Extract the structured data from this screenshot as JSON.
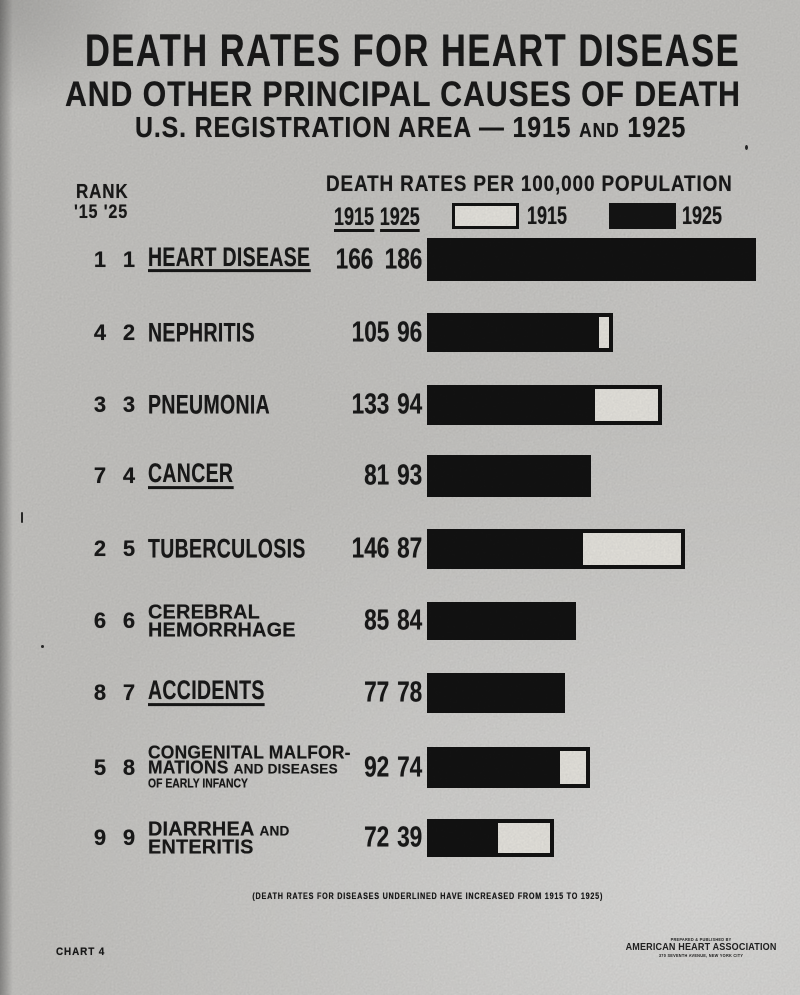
{
  "title": {
    "line1": "DEATH RATES FOR HEART DISEASE",
    "line2": "AND OTHER PRINCIPAL CAUSES OF DEATH",
    "line3_text": "U.S. REGISTRATION AREA  —  1915",
    "line3_and": "AND",
    "line3_year": "1925"
  },
  "header": {
    "rank_label": "RANK",
    "rank_years": "'15 '25",
    "rates_label": "DEATH RATES PER 100,000 POPULATION",
    "col_1915": "1915",
    "col_1925": "1925",
    "legend_1915_label": "1915",
    "legend_1925_label": "1925"
  },
  "footnote": "(DEATH RATES FOR DISEASES UNDERLINED HAVE INCREASED FROM 1915 TO 1925)",
  "footer": {
    "chart_number": "CHART 4",
    "org_top": "PREPARED & PUBLISHED BY",
    "org_name": "AMERICAN HEART ASSOCIATION",
    "org_address": "370 SEVENTH AVENUE, NEW YORK CITY"
  },
  "colors": {
    "ink": "#161616",
    "paper": "#c9c8c5",
    "bar_1925_fill": "#131313",
    "bar_1915_fill": "#eae8e2"
  },
  "chart_data": {
    "type": "bar",
    "orientation": "horizontal",
    "title": "DEATH RATES FOR HEART DISEASE AND OTHER PRINCIPAL CAUSES OF DEATH",
    "subtitle": "U.S. REGISTRATION AREA — 1915 AND 1925",
    "value_axis_label": "DEATH RATES PER 100,000 POPULATION",
    "series_names": [
      "1915",
      "1925"
    ],
    "legend": [
      {
        "label": "1915",
        "swatch": "white-outline"
      },
      {
        "label": "1925",
        "swatch": "black-fill"
      }
    ],
    "note": "Death rates for diseases underlined have increased from 1915 to 1925",
    "rows": [
      {
        "rank_1915": "1",
        "rank_1925": "1",
        "label": "HEART DISEASE",
        "underlined": true,
        "v1915": 166,
        "v1925": 186,
        "lines": [
          {
            "parts": [
              {
                "t": "HEART DISEASE",
                "s": "lg"
              }
            ]
          }
        ]
      },
      {
        "rank_1915": "4",
        "rank_1925": "2",
        "label": "NEPHRITIS",
        "underlined": false,
        "v1915": 105,
        "v1925": 96,
        "lines": [
          {
            "parts": [
              {
                "t": "NEPHRITIS",
                "s": "lg"
              }
            ]
          }
        ]
      },
      {
        "rank_1915": "3",
        "rank_1925": "3",
        "label": "PNEUMONIA",
        "underlined": false,
        "v1915": 133,
        "v1925": 94,
        "lines": [
          {
            "parts": [
              {
                "t": "PNEUMONIA",
                "s": "lg"
              }
            ]
          }
        ]
      },
      {
        "rank_1915": "7",
        "rank_1925": "4",
        "label": "CANCER",
        "underlined": true,
        "v1915": 81,
        "v1925": 93,
        "lines": [
          {
            "parts": [
              {
                "t": "CANCER",
                "s": "lg"
              }
            ]
          }
        ]
      },
      {
        "rank_1915": "2",
        "rank_1925": "5",
        "label": "TUBERCULOSIS",
        "underlined": false,
        "v1915": 146,
        "v1925": 87,
        "lines": [
          {
            "parts": [
              {
                "t": "TUBERCULOSIS",
                "s": "lg"
              }
            ]
          }
        ]
      },
      {
        "rank_1915": "6",
        "rank_1925": "6",
        "label": "CEREBRAL HEMORRHAGE",
        "underlined": false,
        "v1915": 85,
        "v1925": 84,
        "lines": [
          {
            "parts": [
              {
                "t": "CEREBRAL",
                "s": "md"
              }
            ]
          },
          {
            "parts": [
              {
                "t": "HEMORRHAGE",
                "s": "md"
              }
            ]
          }
        ]
      },
      {
        "rank_1915": "8",
        "rank_1925": "7",
        "label": "ACCIDENTS",
        "underlined": true,
        "v1915": 77,
        "v1925": 78,
        "lines": [
          {
            "parts": [
              {
                "t": "ACCIDENTS",
                "s": "lg"
              }
            ]
          }
        ]
      },
      {
        "rank_1915": "5",
        "rank_1925": "8",
        "label": "CONGENITAL MALFORMATIONS AND DISEASES OF EARLY INFANCY",
        "underlined": false,
        "v1915": 92,
        "v1925": 74,
        "lines": [
          {
            "parts": [
              {
                "t": "CONGENITAL MALFOR-",
                "s": "m2"
              }
            ]
          },
          {
            "parts": [
              {
                "t": "MATIONS ",
                "s": "m2"
              },
              {
                "t": "AND DISEASES",
                "s": "sm"
              }
            ]
          },
          {
            "parts": [
              {
                "t": "OF EARLY INFANCY",
                "s": "xs"
              }
            ]
          }
        ]
      },
      {
        "rank_1915": "9",
        "rank_1925": "9",
        "label": "DIARRHEA AND ENTERITIS",
        "underlined": false,
        "v1915": 72,
        "v1925": 39,
        "lines": [
          {
            "parts": [
              {
                "t": "DIARRHEA ",
                "s": "md"
              },
              {
                "t": "AND",
                "s": "sm"
              }
            ]
          },
          {
            "parts": [
              {
                "t": "ENTERITIS",
                "s": "md"
              }
            ]
          }
        ]
      }
    ]
  }
}
